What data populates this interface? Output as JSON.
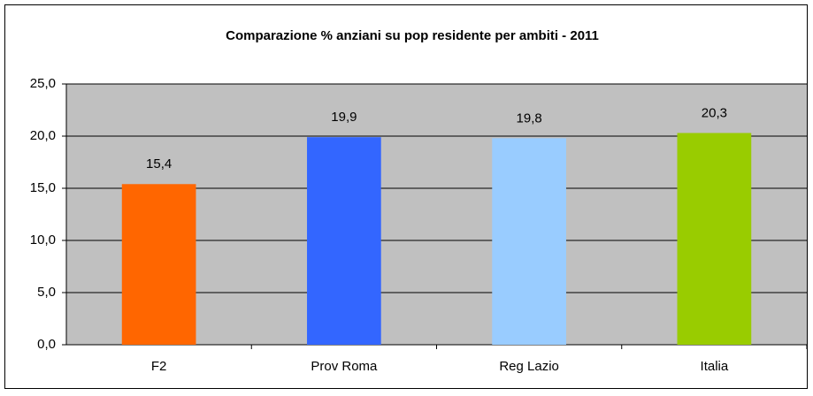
{
  "chart_data": {
    "type": "bar",
    "title": "Comparazione % anziani su pop residente per ambiti - 2011",
    "categories": [
      "F2",
      "Prov Roma",
      "Reg Lazio",
      "Italia"
    ],
    "values": [
      15.4,
      19.9,
      19.8,
      20.3
    ],
    "value_labels": [
      "15,4",
      "19,9",
      "19,8",
      "20,3"
    ],
    "colors": [
      "#ff6600",
      "#3366ff",
      "#99ccff",
      "#99cc00"
    ],
    "ylim": [
      0,
      25
    ],
    "yticks": [
      {
        "value": 0,
        "label": "0,0"
      },
      {
        "value": 5,
        "label": "5,0"
      },
      {
        "value": 10,
        "label": "10,0"
      },
      {
        "value": 15,
        "label": "15,0"
      },
      {
        "value": 20,
        "label": "20,0"
      },
      {
        "value": 25,
        "label": "25,0"
      }
    ],
    "grid": true
  }
}
